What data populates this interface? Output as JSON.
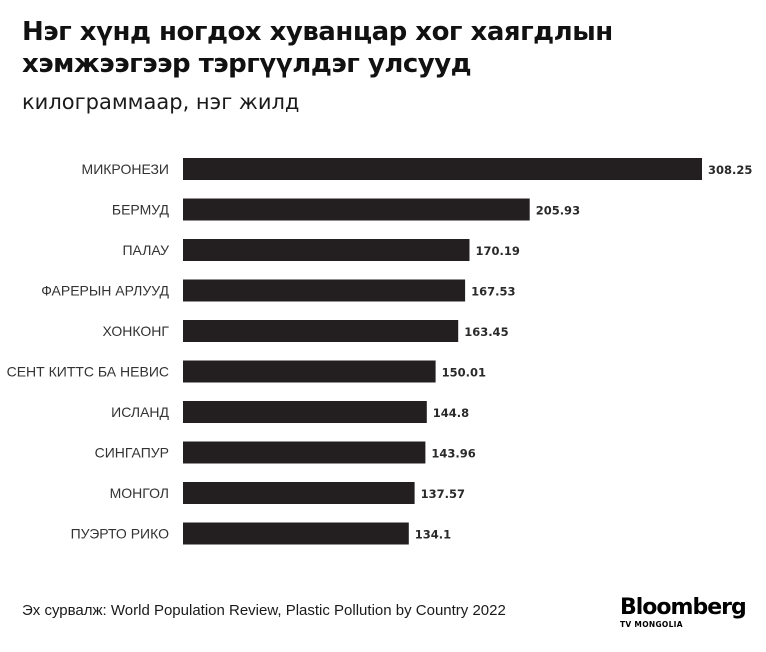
{
  "header": {
    "title": "Нэг хүнд ногдох хуванцар хог хаягдлын хэмжээгээр тэргүүлдэг улсууд",
    "subtitle": "килограммаар, нэг жилд"
  },
  "footer": {
    "source": "Эх сурвалж: World Population Review, Plastic Pollution by Country 2022",
    "logo_main": "Bloomberg",
    "logo_sub": "TV MONGOLIA"
  },
  "colors": {
    "bar": "#231f20",
    "background": "#ffffff"
  },
  "chart_data": {
    "type": "bar",
    "orientation": "horizontal",
    "categories": [
      "МИКРОНЕЗИ",
      "БЕРМУД",
      "ПАЛАУ",
      "ФАРЕРЫН АРЛУУД",
      "ХОНКОНГ",
      "СЕНТ КИТТС БА НЕВИС",
      "ИСЛАНД",
      "СИНГАПУР",
      "МОНГОЛ",
      "ПУЭРТО РИКО"
    ],
    "values": [
      308.25,
      205.93,
      170.19,
      167.53,
      163.45,
      150.01,
      144.8,
      143.96,
      137.57,
      134.1
    ],
    "value_labels": [
      "308.25",
      "205.93",
      "170.19",
      "167.53",
      "163.45",
      "150.01",
      "144.8",
      "143.96",
      "137.57",
      "134.1"
    ],
    "title": "Нэг хүнд ногдох хуванцар хог хаягдлын хэмжээгээр тэргүүлдэг улсууд",
    "subtitle": "килограммаар, нэг жилд",
    "xlim": [
      0,
      308.25
    ],
    "grid": false,
    "legend": "none"
  }
}
